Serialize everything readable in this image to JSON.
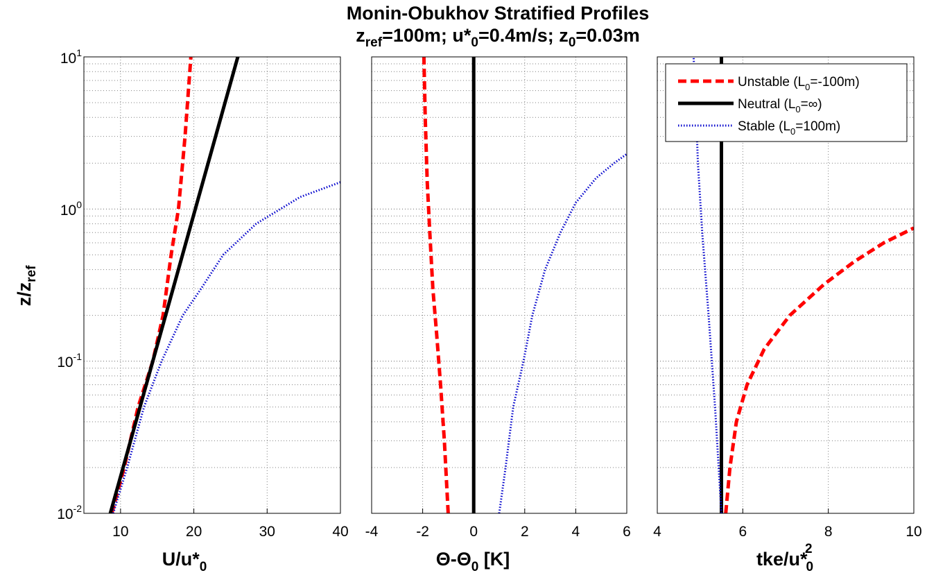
{
  "figure": {
    "title": {
      "line1": "Monin-Obukhov Stratified Profiles",
      "line2": {
        "p1": "z",
        "p1_sub": "ref",
        "p2": "=100m; u*",
        "p2_sub": "0",
        "p3": "=0.4m/s; z",
        "p3_sub": "0",
        "p4": "=0.03m"
      }
    },
    "ylabel": {
      "main": "z/z",
      "sub": "ref"
    },
    "yticks": [
      {
        "base": "10",
        "exp": "-2"
      },
      {
        "base": "10",
        "exp": "-1"
      },
      {
        "base": "10",
        "exp": "0"
      },
      {
        "base": "10",
        "exp": "1"
      }
    ],
    "legend": {
      "placement": "top-right of third panel",
      "entries": [
        {
          "pre": "Unstable (L",
          "sub": "0",
          "post": "=-100m)"
        },
        {
          "pre": "Neutral (L",
          "sub": "0",
          "post": "=∞)"
        },
        {
          "pre": "Stable (L",
          "sub": "0",
          "post": "=100m)"
        }
      ]
    },
    "colors": {
      "unstable": "#ff0000",
      "neutral": "#000000",
      "stable": "#0000cc",
      "grid": "#7f7f7f"
    }
  },
  "chart_data": [
    {
      "type": "line",
      "xlabel": {
        "main": "U/u*",
        "sub": "0"
      },
      "xlim": [
        5,
        40
      ],
      "xticks": [
        "10",
        "20",
        "30",
        "40"
      ],
      "ylim": [
        0.01,
        10
      ],
      "yscale": "log",
      "grid": true,
      "series": [
        {
          "name": "Unstable (L0=-100m)",
          "style": "dashed",
          "x": [
            8.8,
            10.5,
            12.4,
            14.4,
            15.8,
            16.9,
            17.9,
            18.8,
            19.6
          ],
          "y": [
            0.01,
            0.02,
            0.05,
            0.1,
            0.2,
            0.5,
            1,
            3,
            10
          ]
        },
        {
          "name": "Neutral (L0=∞)",
          "style": "solid",
          "x": [
            8.6,
            26.0
          ],
          "y": [
            0.01,
            10
          ]
        },
        {
          "name": "Stable (L0=100m)",
          "style": "dotted",
          "x": [
            9.0,
            10.9,
            13.2,
            15.6,
            18.5,
            21.0,
            24.0,
            28.5,
            34.5,
            40
          ],
          "y": [
            0.01,
            0.02,
            0.05,
            0.1,
            0.2,
            0.3,
            0.5,
            0.8,
            1.2,
            1.5
          ]
        }
      ]
    },
    {
      "type": "line",
      "xlabel": {
        "pre": "Θ-Θ",
        "sub": "0",
        "post": " [K]"
      },
      "xlim": [
        -4,
        6
      ],
      "xticks": [
        "-4",
        "-2",
        "0",
        "2",
        "4",
        "6"
      ],
      "ylim": [
        0.01,
        10
      ],
      "yscale": "log",
      "grid": true,
      "series": [
        {
          "name": "Unstable (L0=-100m)",
          "style": "dashed",
          "x": [
            -1.0,
            -1.15,
            -1.3,
            -1.45,
            -1.6,
            -1.72,
            -1.82,
            -1.9,
            -1.95
          ],
          "y": [
            0.01,
            0.03,
            0.07,
            0.15,
            0.3,
            0.7,
            1.5,
            4,
            10
          ]
        },
        {
          "name": "Neutral (L0=∞)",
          "style": "solid",
          "x": [
            0,
            0
          ],
          "y": [
            0.01,
            10
          ]
        },
        {
          "name": "Stable (L0=100m)",
          "style": "dotted",
          "x": [
            1.0,
            1.25,
            1.55,
            1.95,
            2.3,
            2.8,
            3.4,
            4.0,
            4.8,
            5.5,
            6.0
          ],
          "y": [
            0.01,
            0.02,
            0.05,
            0.1,
            0.2,
            0.4,
            0.7,
            1.1,
            1.6,
            2.0,
            2.3
          ]
        }
      ]
    },
    {
      "type": "line",
      "xlabel": {
        "main": "tke/u*",
        "sup": "2",
        "sub": "0"
      },
      "xlim": [
        4,
        10
      ],
      "xticks": [
        "4",
        "6",
        "8",
        "10"
      ],
      "ylim": [
        0.01,
        10
      ],
      "yscale": "log",
      "grid": true,
      "series": [
        {
          "name": "Unstable (L0=-100m)",
          "style": "dashed",
          "x": [
            5.6,
            5.7,
            5.85,
            6.1,
            6.5,
            7.1,
            7.9,
            8.6,
            9.3,
            10.0
          ],
          "y": [
            0.01,
            0.02,
            0.04,
            0.07,
            0.12,
            0.2,
            0.32,
            0.45,
            0.6,
            0.75
          ]
        },
        {
          "name": "Neutral (L0=∞)",
          "style": "solid",
          "x": [
            5.5,
            5.5
          ],
          "y": [
            0.01,
            10
          ]
        },
        {
          "name": "Stable (L0=100m)",
          "style": "dotted",
          "x": [
            5.5,
            5.35,
            5.2,
            5.05,
            4.95,
            4.9,
            4.85
          ],
          "y": [
            0.01,
            0.05,
            0.2,
            0.7,
            2,
            5,
            10
          ]
        }
      ]
    }
  ]
}
